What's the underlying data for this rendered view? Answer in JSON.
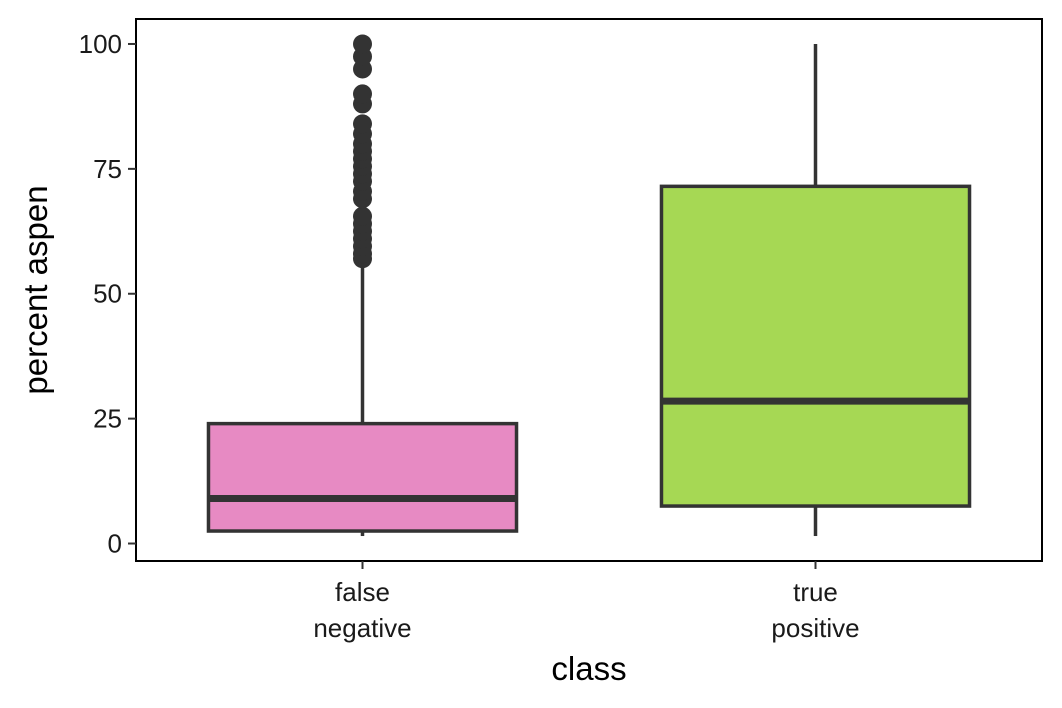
{
  "chart_data": {
    "type": "box",
    "xlabel": "class",
    "ylabel": "percent aspen",
    "ylim": [
      -3.5,
      105
    ],
    "yticks": [
      0,
      25,
      50,
      75,
      100
    ],
    "ytick_labels": [
      "0",
      "25",
      "50",
      "75",
      "100"
    ],
    "grid": false,
    "categories": [
      {
        "label_lines": [
          "false",
          "negative"
        ]
      },
      {
        "label_lines": [
          "true",
          "positive"
        ]
      }
    ],
    "boxes": [
      {
        "fill": "#E78AC3",
        "whisker_low": 1.5,
        "q1": 2.5,
        "median": 9,
        "q3": 24,
        "whisker_high": 56,
        "outliers": [
          57,
          58,
          59.5,
          61,
          62.5,
          64,
          65.5,
          69,
          70.5,
          72.5,
          74,
          75.5,
          77,
          78.5,
          80,
          82,
          84,
          88,
          90,
          95,
          97.5,
          100
        ]
      },
      {
        "fill": "#A6D854",
        "whisker_low": 1.5,
        "q1": 7.5,
        "median": 28.5,
        "q3": 71.5,
        "whisker_high": 100,
        "outliers": []
      }
    ],
    "colors": {
      "outline": "#333333",
      "axis": "#000000"
    }
  }
}
